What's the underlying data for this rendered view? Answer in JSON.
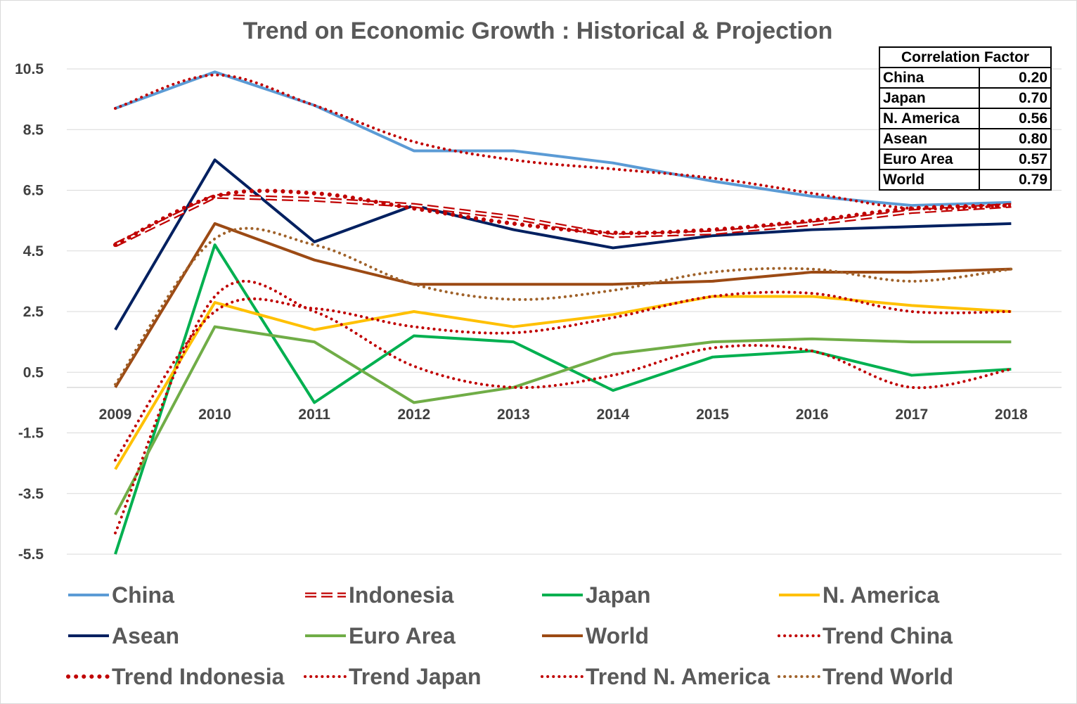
{
  "chart_data": {
    "type": "line",
    "title": "Trend on Economic Growth : Historical & Projection",
    "x": [
      "2009",
      "2010",
      "2011",
      "2012",
      "2013",
      "2014",
      "2015",
      "2016",
      "2017",
      "2018"
    ],
    "y_ticks": [
      "10.5",
      "8.5",
      "6.5",
      "4.5",
      "2.5",
      "0.5",
      "-1.5",
      "-3.5",
      "-5.5"
    ],
    "ylim": [
      -5.5,
      10.5
    ],
    "grid": true,
    "legend_position": "bottom",
    "series": [
      {
        "name": "China",
        "color": "#5b9bd5",
        "style": "solid",
        "values": [
          9.2,
          10.4,
          9.3,
          7.8,
          7.8,
          7.4,
          6.8,
          6.3,
          6.0,
          6.1
        ]
      },
      {
        "name": "Indonesia",
        "color": "#c00000",
        "style": "double-dash",
        "values": [
          4.7,
          6.3,
          6.2,
          6.0,
          5.6,
          5.0,
          5.1,
          5.4,
          5.8,
          6.0
        ]
      },
      {
        "name": "Japan",
        "color": "#00b050",
        "style": "solid",
        "values": [
          -5.5,
          4.7,
          -0.5,
          1.7,
          1.5,
          -0.1,
          1.0,
          1.2,
          0.4,
          0.6
        ]
      },
      {
        "name": "N. America",
        "color": "#ffc000",
        "style": "solid",
        "values": [
          -2.7,
          2.8,
          1.9,
          2.5,
          2.0,
          2.4,
          3.0,
          3.0,
          2.7,
          2.5
        ]
      },
      {
        "name": "Asean",
        "color": "#002060",
        "style": "solid",
        "values": [
          1.9,
          7.5,
          4.8,
          6.0,
          5.2,
          4.6,
          5.0,
          5.2,
          5.3,
          5.4
        ]
      },
      {
        "name": "Euro Area",
        "color": "#70ad47",
        "style": "solid",
        "values": [
          -4.2,
          2.0,
          1.5,
          -0.5,
          0.0,
          1.1,
          1.5,
          1.6,
          1.5,
          1.5
        ]
      },
      {
        "name": "World",
        "color": "#9c4a14",
        "style": "solid",
        "values": [
          0.0,
          5.4,
          4.2,
          3.4,
          3.4,
          3.4,
          3.5,
          3.8,
          3.8,
          3.9
        ]
      },
      {
        "name": "Trend China",
        "color": "#c00000",
        "style": "dotted",
        "values": [
          9.2,
          10.3,
          9.3,
          8.1,
          7.5,
          7.2,
          6.9,
          6.4,
          5.9,
          6.0
        ]
      },
      {
        "name": "Trend Indonesia",
        "color": "#c00000",
        "style": "dotted-bold",
        "values": [
          4.7,
          6.3,
          6.4,
          5.9,
          5.4,
          5.1,
          5.2,
          5.5,
          5.9,
          6.0
        ]
      },
      {
        "name": "Trend Japan",
        "color": "#c00000",
        "style": "dotted",
        "values": [
          -4.8,
          3.0,
          2.5,
          0.7,
          0.0,
          0.4,
          1.3,
          1.2,
          0.0,
          0.6
        ]
      },
      {
        "name": "Trend N. America",
        "color": "#c00000",
        "style": "dotted",
        "values": [
          -2.4,
          2.5,
          2.6,
          2.0,
          1.8,
          2.3,
          3.0,
          3.1,
          2.5,
          2.5
        ]
      },
      {
        "name": "Trend World",
        "color": "#a0622a",
        "style": "dotted",
        "values": [
          0.1,
          4.9,
          4.7,
          3.4,
          2.9,
          3.2,
          3.8,
          3.9,
          3.5,
          3.9
        ]
      }
    ]
  },
  "correlation_table": {
    "header": "Correlation Factor",
    "rows": [
      {
        "label": "China",
        "value": "0.20"
      },
      {
        "label": "Japan",
        "value": "0.70"
      },
      {
        "label": "N. America",
        "value": "0.56"
      },
      {
        "label": "Asean",
        "value": "0.80"
      },
      {
        "label": "Euro Area",
        "value": "0.57"
      },
      {
        "label": "World",
        "value": "0.79"
      }
    ]
  }
}
